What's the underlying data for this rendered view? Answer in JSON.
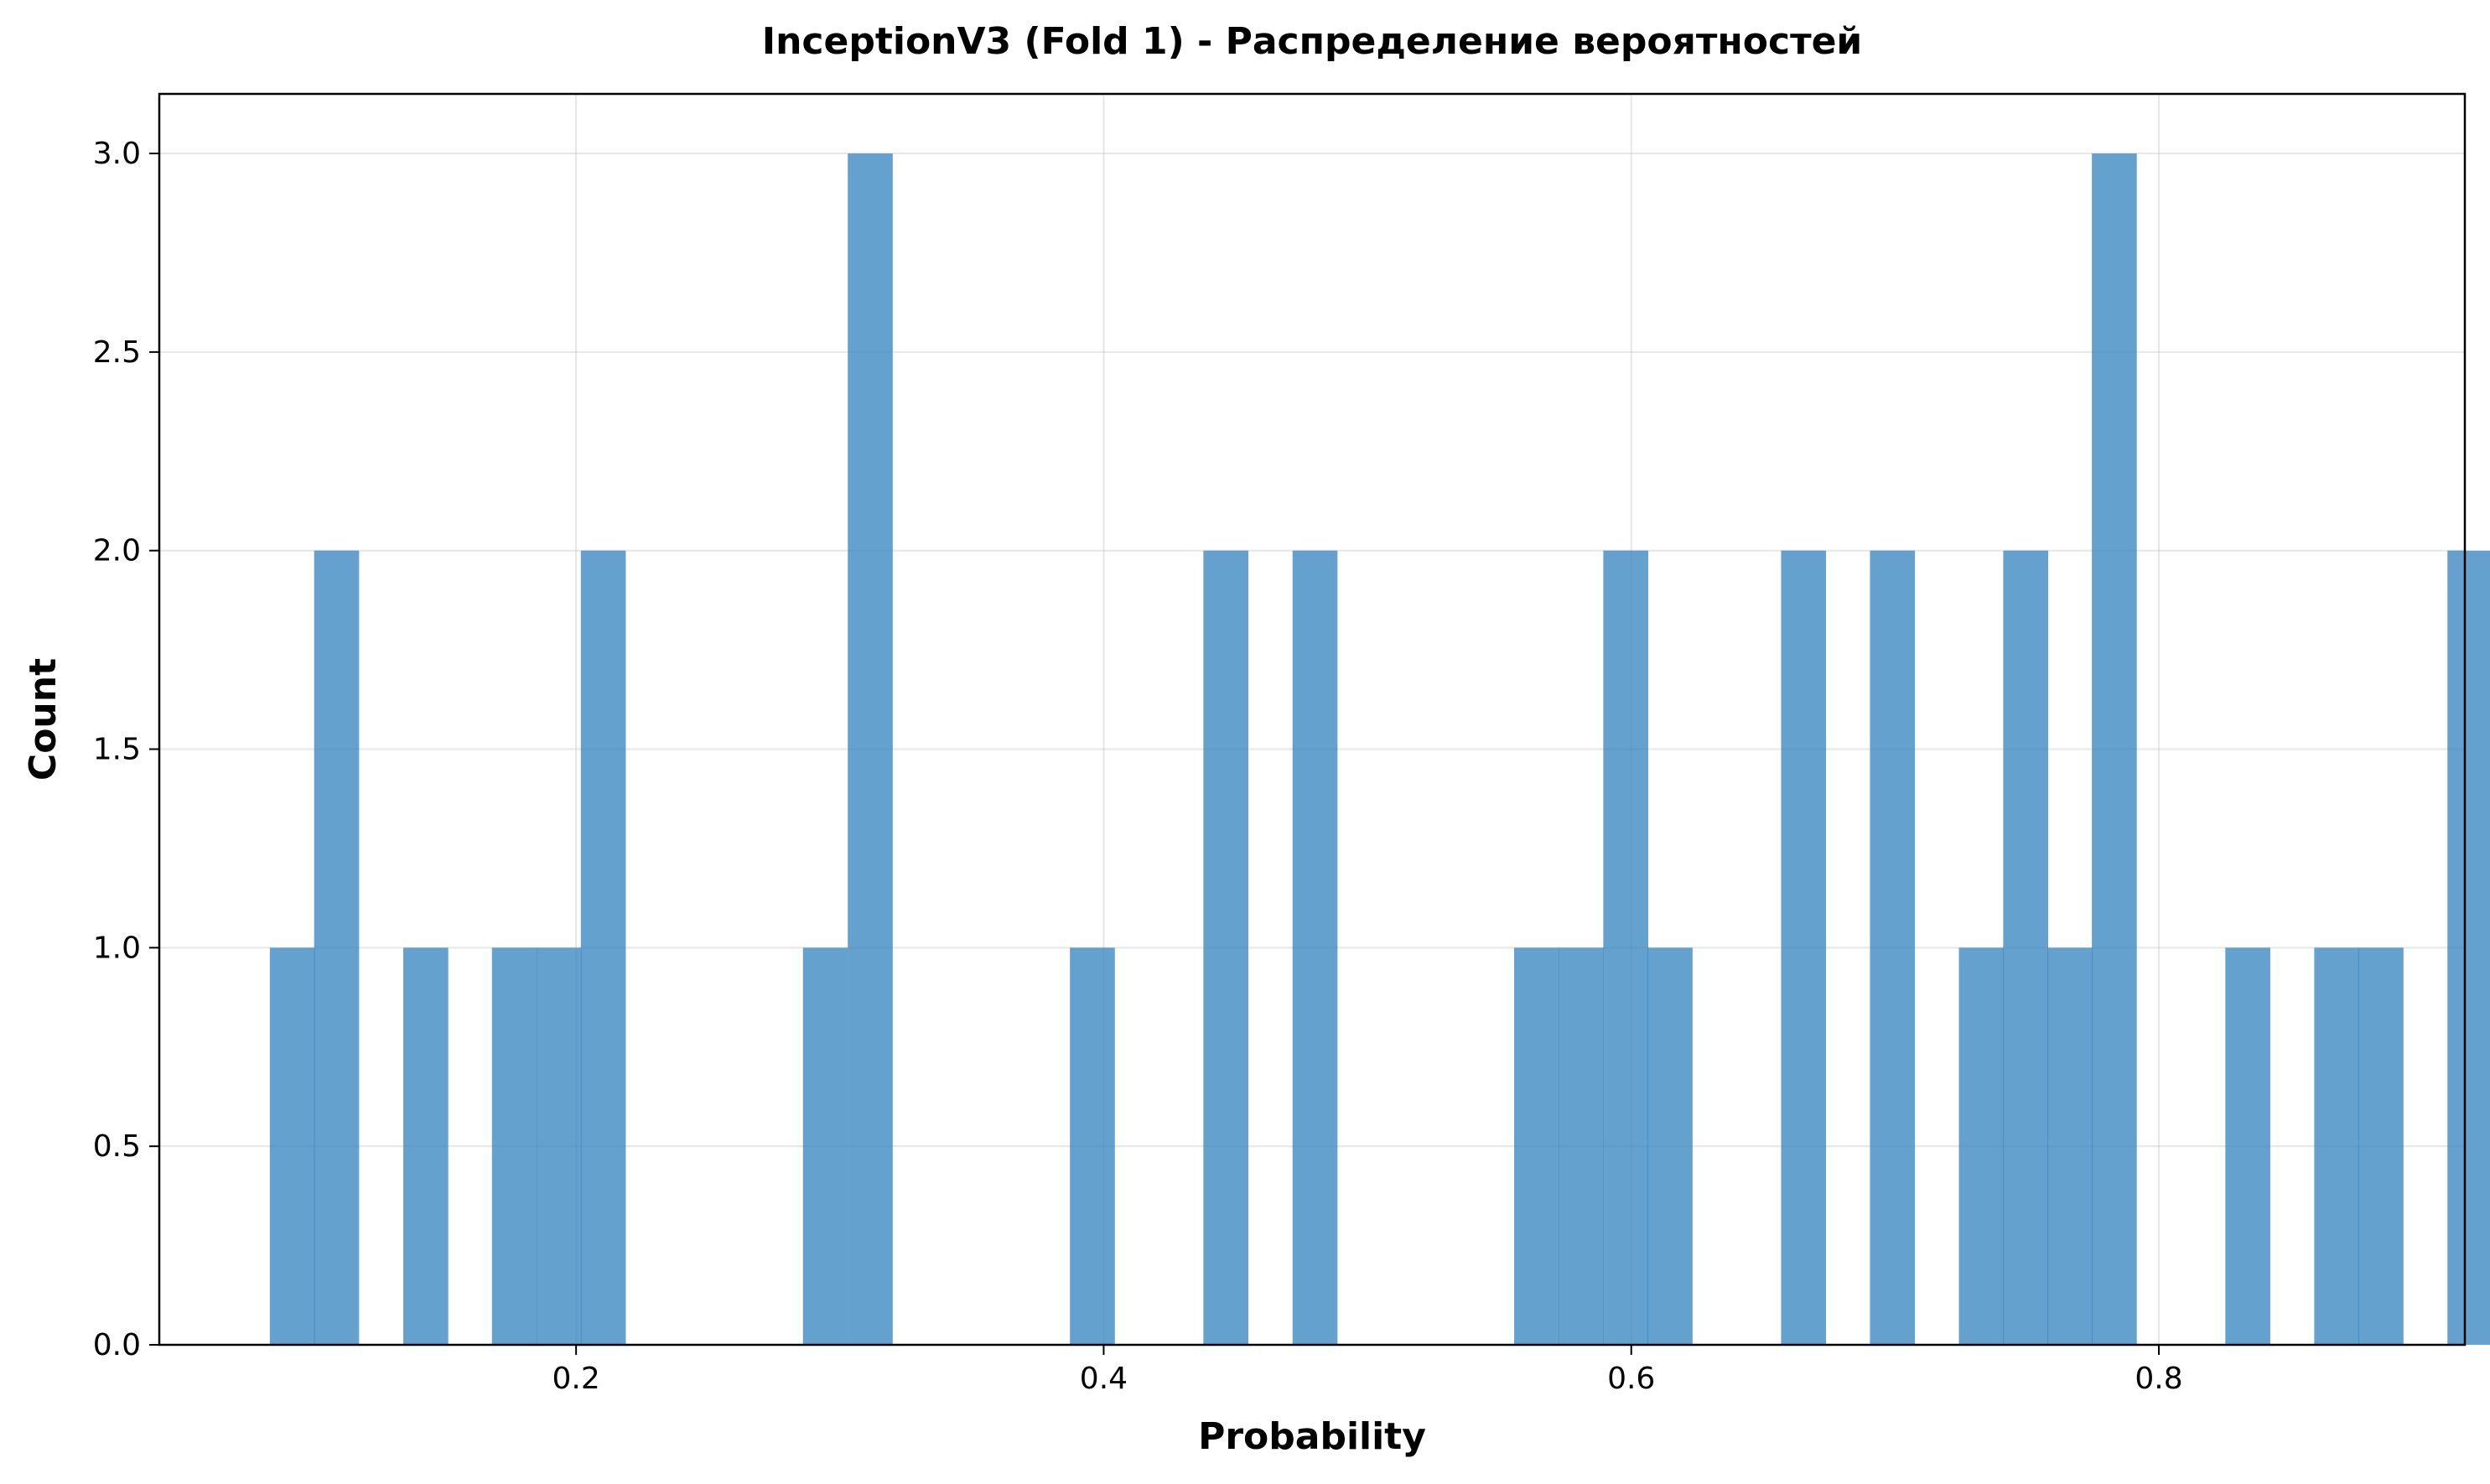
{
  "chart_data": {
    "type": "bar",
    "title": "InceptionV3 (Fold 1) - Распределение вероятностей",
    "xlabel": "Probability",
    "ylabel": "Count",
    "xlim": [
      0.042,
      0.916
    ],
    "ylim": [
      0,
      3.15
    ],
    "x_ticks": [
      0.2,
      0.4,
      0.6,
      0.8
    ],
    "x_tick_labels": [
      "0.2",
      "0.4",
      "0.6",
      "0.8"
    ],
    "y_ticks": [
      0,
      0.5,
      1,
      1.5,
      2,
      2.5,
      3
    ],
    "y_tick_labels": [
      "0.0",
      "0.5",
      "1.0",
      "1.5",
      "2.0",
      "2.5",
      "3.0"
    ],
    "grid": true,
    "bar_color": "#3282bd",
    "bar_opacity": 0.75,
    "bin_width": 0.01685,
    "bins": [
      {
        "x_start": 0.0839,
        "count": 1
      },
      {
        "x_start": 0.1007,
        "count": 2
      },
      {
        "x_start": 0.1345,
        "count": 1
      },
      {
        "x_start": 0.1681,
        "count": 1
      },
      {
        "x_start": 0.185,
        "count": 1
      },
      {
        "x_start": 0.2018,
        "count": 2
      },
      {
        "x_start": 0.286,
        "count": 1
      },
      {
        "x_start": 0.303,
        "count": 3
      },
      {
        "x_start": 0.3872,
        "count": 1
      },
      {
        "x_start": 0.4378,
        "count": 2
      },
      {
        "x_start": 0.4716,
        "count": 2
      },
      {
        "x_start": 0.5556,
        "count": 1
      },
      {
        "x_start": 0.5725,
        "count": 1
      },
      {
        "x_start": 0.5894,
        "count": 2
      },
      {
        "x_start": 0.6062,
        "count": 1
      },
      {
        "x_start": 0.6568,
        "count": 2
      },
      {
        "x_start": 0.6905,
        "count": 2
      },
      {
        "x_start": 0.7242,
        "count": 1
      },
      {
        "x_start": 0.741,
        "count": 2
      },
      {
        "x_start": 0.7578,
        "count": 1
      },
      {
        "x_start": 0.7746,
        "count": 3
      },
      {
        "x_start": 0.8252,
        "count": 1
      },
      {
        "x_start": 0.8589,
        "count": 1
      },
      {
        "x_start": 0.8757,
        "count": 1
      },
      {
        "x_start": 0.9094,
        "count": 2
      }
    ]
  }
}
